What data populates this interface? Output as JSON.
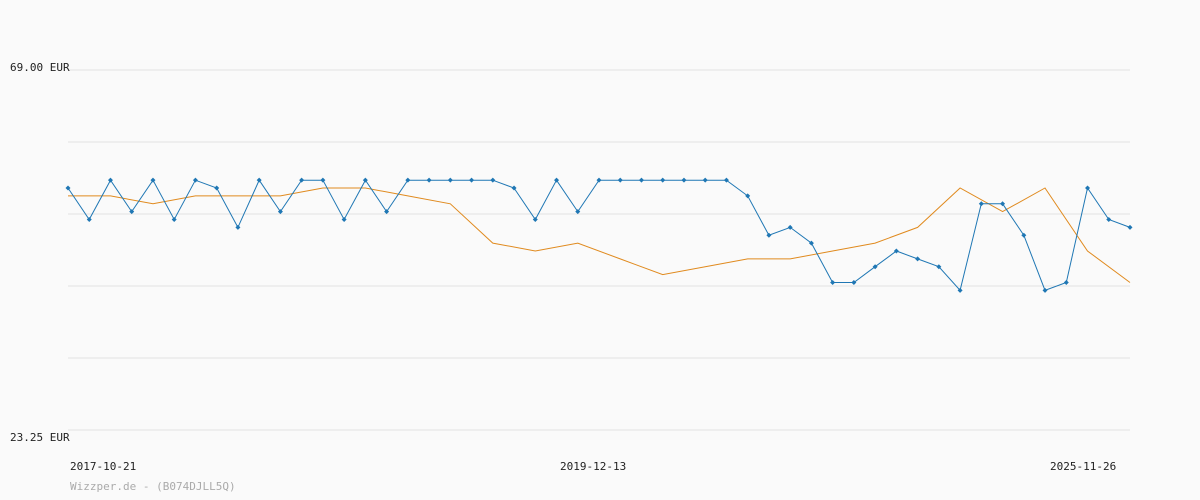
{
  "chart_data": {
    "type": "line",
    "y_unit": "EUR",
    "ylim": [
      23.25,
      69.0
    ],
    "y_tick_labels": [
      "69.00 EUR",
      "23.25 EUR"
    ],
    "x_tick_labels": [
      "2017-10-21",
      "2019-12-13",
      "2025-11-26"
    ],
    "grid": true,
    "credit": "Wizzper.de - (B074DJLL5Q)",
    "colors": {
      "price": "#1f77b4",
      "average": "#e08a1e",
      "grid": "#e3e3e3"
    },
    "series": [
      {
        "role": "price",
        "x": [
          0,
          2,
          4,
          6,
          8,
          10,
          12,
          14,
          16,
          18,
          20,
          22,
          24,
          26,
          28,
          30,
          32,
          34,
          36,
          38,
          40,
          42,
          44,
          46,
          48,
          50,
          52,
          54,
          56,
          58,
          60,
          62,
          64,
          66,
          68,
          70,
          72,
          74,
          76,
          78,
          80,
          82,
          84,
          86,
          88,
          90,
          92,
          94,
          96,
          98,
          100
        ],
        "y": [
          54,
          50,
          55,
          51,
          55,
          50,
          55,
          54,
          49,
          55,
          51,
          55,
          55,
          50,
          55,
          51,
          55,
          55,
          55,
          55,
          55,
          54,
          50,
          55,
          51,
          55,
          55,
          55,
          55,
          55,
          55,
          55,
          53,
          48,
          49,
          47,
          42,
          42,
          44,
          46,
          45,
          44,
          41,
          52,
          52,
          48,
          41,
          42,
          54,
          50,
          49
        ]
      },
      {
        "role": "average",
        "x": [
          0,
          4,
          8,
          12,
          16,
          20,
          24,
          28,
          32,
          36,
          40,
          44,
          48,
          52,
          56,
          60,
          64,
          68,
          72,
          76,
          80,
          84,
          88,
          92,
          96,
          100
        ],
        "y": [
          53,
          53,
          52,
          53,
          53,
          53,
          54,
          54,
          53,
          52,
          47,
          46,
          47,
          45,
          43,
          44,
          45,
          45,
          46,
          47,
          49,
          54,
          51,
          54,
          46,
          42
        ]
      }
    ]
  }
}
